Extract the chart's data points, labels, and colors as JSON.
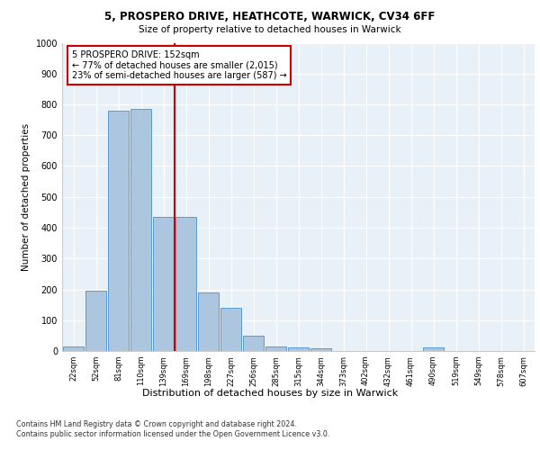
{
  "title_line1": "5, PROSPERO DRIVE, HEATHCOTE, WARWICK, CV34 6FF",
  "title_line2": "Size of property relative to detached houses in Warwick",
  "xlabel": "Distribution of detached houses by size in Warwick",
  "ylabel": "Number of detached properties",
  "categories": [
    "22sqm",
    "52sqm",
    "81sqm",
    "110sqm",
    "139sqm",
    "169sqm",
    "198sqm",
    "227sqm",
    "256sqm",
    "285sqm",
    "315sqm",
    "344sqm",
    "373sqm",
    "402sqm",
    "432sqm",
    "461sqm",
    "490sqm",
    "519sqm",
    "549sqm",
    "578sqm",
    "607sqm"
  ],
  "values": [
    15,
    195,
    780,
    785,
    435,
    435,
    190,
    140,
    50,
    15,
    12,
    10,
    0,
    0,
    0,
    0,
    12,
    0,
    0,
    0,
    0
  ],
  "bar_color": "#adc6e0",
  "bar_edge_color": "#5b9bd5",
  "vline_x": 4.5,
  "vline_color": "#cc0000",
  "annotation_text": "5 PROSPERO DRIVE: 152sqm\n← 77% of detached houses are smaller (2,015)\n23% of semi-detached houses are larger (587) →",
  "annotation_box_color": "#ffffff",
  "annotation_box_edge": "#cc0000",
  "ylim": [
    0,
    1000
  ],
  "yticks": [
    0,
    100,
    200,
    300,
    400,
    500,
    600,
    700,
    800,
    900,
    1000
  ],
  "bg_color": "#e8f0f8",
  "footnote": "Contains HM Land Registry data © Crown copyright and database right 2024.\nContains public sector information licensed under the Open Government Licence v3.0."
}
